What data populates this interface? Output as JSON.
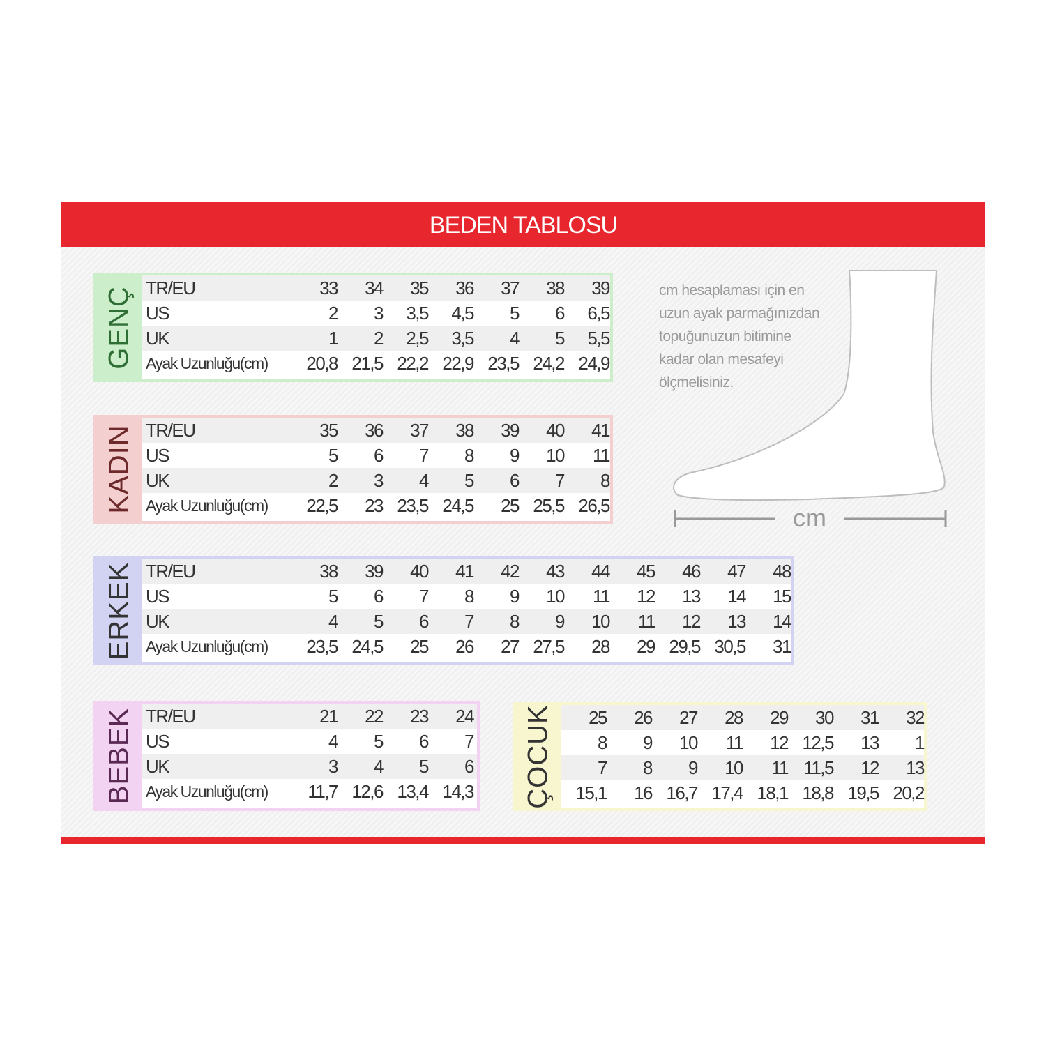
{
  "title": "BEDEN TABLOSU",
  "note": [
    "cm hesaplaması için en",
    "uzun ayak parmağınızdan",
    "topuğunuzun bitimine",
    "kadar olan mesafeyi",
    "ölçmelisiniz."
  ],
  "measure_label": "cm",
  "colors": {
    "header": "#e8262e",
    "genc": "#cdeecb",
    "kadin": "#f3cfd0",
    "erkek": "#d2d3f3",
    "bebek": "#f2d3f2",
    "cocuk": "#f7f6cf"
  },
  "tables": [
    {
      "id": "genc",
      "label": "GENÇ",
      "label_color": "#2f6e35",
      "rows": [
        {
          "label": "TR/EU",
          "values": [
            "33",
            "34",
            "35",
            "36",
            "37",
            "38",
            "39"
          ]
        },
        {
          "label": "US",
          "values": [
            "2",
            "3",
            "3,5",
            "4,5",
            "5",
            "6",
            "6,5"
          ]
        },
        {
          "label": "UK",
          "values": [
            "1",
            "2",
            "2,5",
            "3,5",
            "4",
            "5",
            "5,5"
          ]
        },
        {
          "label": "Ayak Uzunluğu(cm)",
          "values": [
            "20,8",
            "21,5",
            "22,2",
            "22,9",
            "23,5",
            "24,2",
            "24,9"
          ]
        }
      ]
    },
    {
      "id": "kadin",
      "label": "KADIN",
      "label_color": "#6e2a2a",
      "rows": [
        {
          "label": "TR/EU",
          "values": [
            "35",
            "36",
            "37",
            "38",
            "39",
            "40",
            "41"
          ]
        },
        {
          "label": "US",
          "values": [
            "5",
            "6",
            "7",
            "8",
            "9",
            "10",
            "11"
          ]
        },
        {
          "label": "UK",
          "values": [
            "2",
            "3",
            "4",
            "5",
            "6",
            "7",
            "8"
          ]
        },
        {
          "label": "Ayak Uzunluğu(cm)",
          "values": [
            "22,5",
            "23",
            "23,5",
            "24,5",
            "25",
            "25,5",
            "26,5"
          ]
        }
      ]
    },
    {
      "id": "erkek",
      "label": "ERKEK",
      "label_color": "#333",
      "rows": [
        {
          "label": "TR/EU",
          "values": [
            "38",
            "39",
            "40",
            "41",
            "42",
            "43",
            "44",
            "45",
            "46",
            "47",
            "48"
          ]
        },
        {
          "label": "US",
          "values": [
            "5",
            "6",
            "7",
            "8",
            "9",
            "10",
            "11",
            "12",
            "13",
            "14",
            "15"
          ]
        },
        {
          "label": "UK",
          "values": [
            "4",
            "5",
            "6",
            "7",
            "8",
            "9",
            "10",
            "11",
            "12",
            "13",
            "14"
          ]
        },
        {
          "label": "Ayak Uzunluğu(cm)",
          "values": [
            "23,5",
            "24,5",
            "25",
            "26",
            "27",
            "27,5",
            "28",
            "29",
            "29,5",
            "30,5",
            "31"
          ]
        }
      ]
    },
    {
      "id": "bebek",
      "label": "BEBEK",
      "label_color": "#5a2a55",
      "rows": [
        {
          "label": "TR/EU",
          "values": [
            "21",
            "22",
            "23",
            "24"
          ]
        },
        {
          "label": "US",
          "values": [
            "4",
            "5",
            "6",
            "7"
          ]
        },
        {
          "label": "UK",
          "values": [
            "3",
            "4",
            "5",
            "6"
          ]
        },
        {
          "label": "Ayak Uzunluğu(cm)",
          "values": [
            "11,7",
            "12,6",
            "13,4",
            "14,3"
          ]
        }
      ]
    },
    {
      "id": "cocuk",
      "label": "ÇOCUK",
      "label_color": "#333",
      "rows": [
        {
          "label": "",
          "values": [
            "25",
            "26",
            "27",
            "28",
            "29",
            "30",
            "31",
            "32"
          ]
        },
        {
          "label": "",
          "values": [
            "8",
            "9",
            "10",
            "11",
            "12",
            "12,5",
            "13",
            "1"
          ]
        },
        {
          "label": "",
          "values": [
            "7",
            "8",
            "9",
            "10",
            "11",
            "11,5",
            "12",
            "13"
          ]
        },
        {
          "label": "",
          "values": [
            "15,1",
            "16",
            "16,7",
            "17,4",
            "18,1",
            "18,8",
            "19,5",
            "20,2"
          ]
        }
      ]
    }
  ]
}
